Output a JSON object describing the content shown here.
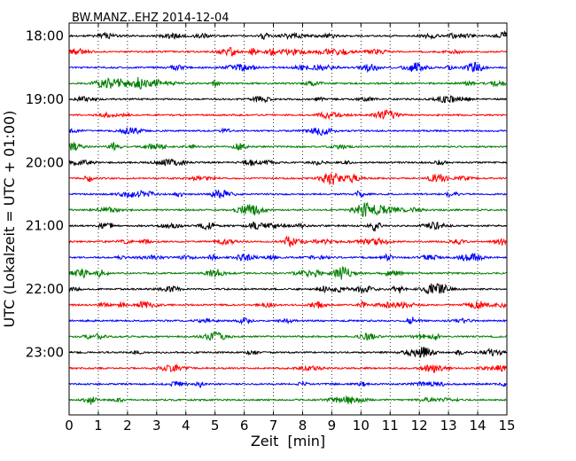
{
  "chart_data": {
    "type": "line",
    "title": "BW.MANZ..EHZ 2014-12-04",
    "xlabel": "Zeit  [min]",
    "ylabel": "UTC (Lokalzeit = UTC + 01:00)",
    "xlim": [
      0,
      15
    ],
    "x_ticks": [
      "0",
      "1",
      "2",
      "3",
      "4",
      "5",
      "6",
      "7",
      "8",
      "9",
      "10",
      "11",
      "12",
      "13",
      "14",
      "15"
    ],
    "y_tick_labels": [
      "18:00",
      "19:00",
      "20:00",
      "21:00",
      "22:00",
      "23:00"
    ],
    "grid": "vertical dotted",
    "traces_per_hour": 4,
    "trace_color_cycle": [
      "#000000",
      "#ff0000",
      "#0000ff",
      "#007f00"
    ],
    "series": [
      {
        "start": "18:00",
        "color": "#000000"
      },
      {
        "start": "18:15",
        "color": "#ff0000"
      },
      {
        "start": "18:30",
        "color": "#0000ff"
      },
      {
        "start": "18:45",
        "color": "#007f00"
      },
      {
        "start": "19:00",
        "color": "#000000"
      },
      {
        "start": "19:15",
        "color": "#ff0000"
      },
      {
        "start": "19:30",
        "color": "#0000ff"
      },
      {
        "start": "19:45",
        "color": "#007f00"
      },
      {
        "start": "20:00",
        "color": "#000000"
      },
      {
        "start": "20:15",
        "color": "#ff0000"
      },
      {
        "start": "20:30",
        "color": "#0000ff"
      },
      {
        "start": "20:45",
        "color": "#007f00"
      },
      {
        "start": "21:00",
        "color": "#000000"
      },
      {
        "start": "21:15",
        "color": "#ff0000"
      },
      {
        "start": "21:30",
        "color": "#0000ff"
      },
      {
        "start": "21:45",
        "color": "#007f00"
      },
      {
        "start": "22:00",
        "color": "#000000"
      },
      {
        "start": "22:15",
        "color": "#ff0000"
      },
      {
        "start": "22:30",
        "color": "#0000ff"
      },
      {
        "start": "22:45",
        "color": "#007f00"
      },
      {
        "start": "23:00",
        "color": "#000000"
      },
      {
        "start": "23:15",
        "color": "#ff0000"
      },
      {
        "start": "23:30",
        "color": "#0000ff"
      },
      {
        "start": "23:45",
        "color": "#007f00"
      }
    ]
  }
}
